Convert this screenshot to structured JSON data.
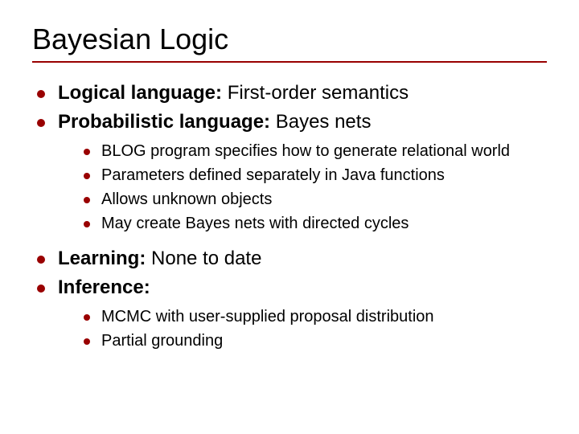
{
  "colors": {
    "title": "#000000",
    "rule": "#990000",
    "bullet": "#990000",
    "body": "#000000"
  },
  "title": "Bayesian Logic",
  "items": [
    {
      "label": "Logical language:",
      "rest": " First-order semantics"
    },
    {
      "label": "Probabilistic language:",
      "rest": " Bayes nets",
      "sub": [
        "BLOG program specifies how to generate relational world",
        "Parameters defined separately in Java functions",
        "Allows unknown objects",
        "May create Bayes nets with directed cycles"
      ]
    },
    {
      "label": "Learning:",
      "rest": " None to date"
    },
    {
      "label": "Inference:",
      "rest": "",
      "sub": [
        "MCMC with user-supplied proposal distribution",
        "Partial grounding"
      ]
    }
  ]
}
